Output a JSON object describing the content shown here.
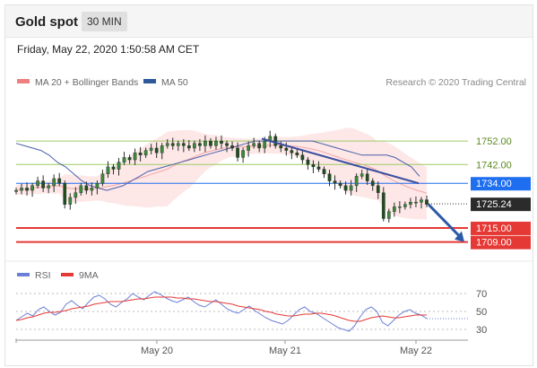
{
  "header": {
    "title": "Gold spot",
    "timeframe": "30 MIN"
  },
  "timestamp": "Friday, May 22, 2020 1:50:58 AM CET",
  "legend": {
    "items": [
      {
        "label": "MA 20 + Bollinger Bands",
        "color": "#f08080"
      },
      {
        "label": "MA 50",
        "color": "#2e5a9c"
      }
    ],
    "credit": "Research © 2020 Trading Central"
  },
  "rsi_legend": {
    "items": [
      {
        "label": "RSI",
        "color": "#6a7fd6"
      },
      {
        "label": "9MA",
        "color": "#e53935"
      }
    ]
  },
  "chart_data": [
    {
      "type": "candlestick",
      "x_ticks": [
        "May 20",
        "May 21",
        "May 22"
      ],
      "y_range": [
        1702,
        1770
      ],
      "levels": [
        {
          "value": 1752.0,
          "label": "1752.00",
          "kind": "resistance",
          "color": "#9ccc65"
        },
        {
          "value": 1742.0,
          "label": "1742.00",
          "kind": "resistance",
          "color": "#9ccc65"
        },
        {
          "value": 1734.0,
          "label": "1734.00",
          "kind": "pivot",
          "color": "#1e6ff0"
        },
        {
          "value": 1715.0,
          "label": "1715.00",
          "kind": "support",
          "color": "#e53935"
        },
        {
          "value": 1709.0,
          "label": "1709.00",
          "kind": "support",
          "color": "#e53935"
        }
      ],
      "last_price": {
        "value": 1725.24,
        "label": "1725.24"
      },
      "close": [
        1731,
        1732,
        1731,
        1733,
        1735,
        1732,
        1733,
        1736,
        1734,
        1725,
        1728,
        1730,
        1733,
        1731,
        1732,
        1734,
        1738,
        1741,
        1740,
        1743,
        1745,
        1744,
        1747,
        1746,
        1748,
        1749,
        1747,
        1750,
        1751,
        1750,
        1751,
        1750,
        1749,
        1751,
        1750,
        1752,
        1750,
        1752,
        1751,
        1750,
        1749,
        1745,
        1748,
        1750,
        1751,
        1749,
        1752,
        1754,
        1750,
        1749,
        1748,
        1747,
        1746,
        1744,
        1742,
        1741,
        1740,
        1738,
        1735,
        1734,
        1733,
        1731,
        1733,
        1737,
        1738,
        1735,
        1733,
        1730,
        1719,
        1722,
        1724,
        1724,
        1725,
        1726,
        1726,
        1727,
        1725
      ],
      "ma50": [
        1751,
        1750,
        1749,
        1748,
        1746,
        1743,
        1741,
        1738,
        1735,
        1733,
        1732,
        1731,
        1732,
        1733,
        1735,
        1737,
        1739,
        1740,
        1741,
        1742,
        1743,
        1744,
        1745,
        1746,
        1747,
        1748,
        1749,
        1750,
        1751,
        1752,
        1752,
        1752,
        1752,
        1752,
        1752,
        1752,
        1752,
        1751,
        1750,
        1749,
        1748,
        1747,
        1746,
        1746,
        1746,
        1746,
        1745,
        1743,
        1741,
        1737
      ],
      "trend_line": {
        "from": 1753,
        "to": 1734
      },
      "forecast_arrow": {
        "from": 1725,
        "to": 1709
      }
    },
    {
      "type": "line",
      "title": "RSI",
      "y_ticks": [
        70,
        50,
        30
      ],
      "series": [
        {
          "name": "RSI",
          "values": [
            40,
            44,
            48,
            45,
            52,
            55,
            50,
            46,
            49,
            58,
            62,
            57,
            53,
            60,
            66,
            68,
            64,
            58,
            55,
            60,
            64,
            70,
            66,
            63,
            68,
            72,
            69,
            65,
            62,
            60,
            63,
            66,
            61,
            57,
            55,
            59,
            63,
            58,
            53,
            50,
            48,
            52,
            56,
            51,
            47,
            43,
            40,
            38,
            36,
            40,
            46,
            52,
            55,
            50,
            48,
            44,
            40,
            36,
            32,
            30,
            28,
            34,
            44,
            52,
            55,
            50,
            38,
            34,
            40,
            46,
            50,
            52,
            48,
            46,
            42
          ]
        },
        {
          "name": "9MA",
          "values": [
            40,
            41,
            43,
            44,
            46,
            48,
            49,
            49,
            50,
            51,
            53,
            54,
            55,
            56,
            58,
            59,
            60,
            61,
            61,
            61,
            62,
            63,
            64,
            64,
            65,
            66,
            66,
            66,
            66,
            65,
            65,
            64,
            64,
            63,
            62,
            61,
            61,
            60,
            59,
            58,
            56,
            55,
            54,
            53,
            52,
            50,
            49,
            47,
            46,
            45,
            45,
            46,
            47,
            47,
            48,
            48,
            47,
            46,
            44,
            42,
            40,
            39,
            39,
            41,
            43,
            44,
            45,
            44,
            43,
            43,
            44,
            45,
            46,
            46,
            46
          ]
        }
      ]
    }
  ]
}
